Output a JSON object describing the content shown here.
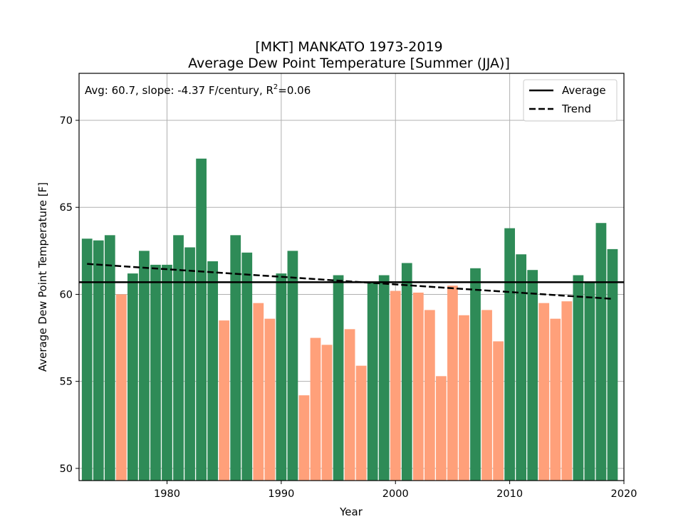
{
  "chart_data": {
    "type": "bar",
    "title": [
      "[MKT] MANKATO 1973-2019",
      "Average Dew Point Temperature [Summer (JJA)]"
    ],
    "xlabel": "Year",
    "ylabel": "Average Dew Point Temperature [F]",
    "xlim": [
      1972.3,
      2020
    ],
    "ylim": [
      49.3,
      72.7
    ],
    "xticks": [
      1980,
      1990,
      2000,
      2010,
      2020
    ],
    "yticks": [
      50,
      55,
      60,
      65,
      70
    ],
    "grid": true,
    "annotation": {
      "prefix": "Avg: 60.7, slope: -4.37 F/century, R",
      "superscript": "2",
      "suffix": "=0.06"
    },
    "legend": {
      "position": "top-right",
      "entries": [
        {
          "label": "Average",
          "style": "solid"
        },
        {
          "label": "Trend",
          "style": "dashed"
        }
      ]
    },
    "average": 60.7,
    "trend": {
      "x": [
        1973,
        2019
      ],
      "y": [
        61.75,
        59.74
      ]
    },
    "colors": {
      "above": "#2e8b57",
      "below": "#ffa07a",
      "lines": "#000000",
      "grid": "#b0b0b0"
    },
    "x": [
      1973,
      1974,
      1975,
      1976,
      1977,
      1978,
      1979,
      1980,
      1981,
      1982,
      1983,
      1984,
      1985,
      1986,
      1987,
      1988,
      1989,
      1990,
      1991,
      1992,
      1993,
      1994,
      1995,
      1996,
      1997,
      1998,
      1999,
      2000,
      2001,
      2002,
      2003,
      2004,
      2005,
      2006,
      2007,
      2008,
      2009,
      2010,
      2011,
      2012,
      2013,
      2014,
      2015,
      2016,
      2017,
      2018,
      2019
    ],
    "values": [
      63.2,
      63.1,
      63.4,
      60.0,
      61.2,
      62.5,
      61.7,
      61.7,
      63.4,
      62.7,
      67.8,
      61.9,
      58.5,
      63.4,
      62.4,
      59.5,
      58.6,
      61.2,
      62.5,
      54.2,
      57.5,
      57.1,
      61.1,
      58.0,
      55.9,
      60.7,
      61.1,
      60.2,
      61.8,
      60.1,
      59.1,
      55.3,
      60.5,
      58.8,
      61.5,
      59.1,
      57.3,
      63.8,
      62.3,
      61.4,
      59.5,
      58.6,
      59.6,
      61.1,
      60.7,
      64.1,
      62.6
    ]
  }
}
